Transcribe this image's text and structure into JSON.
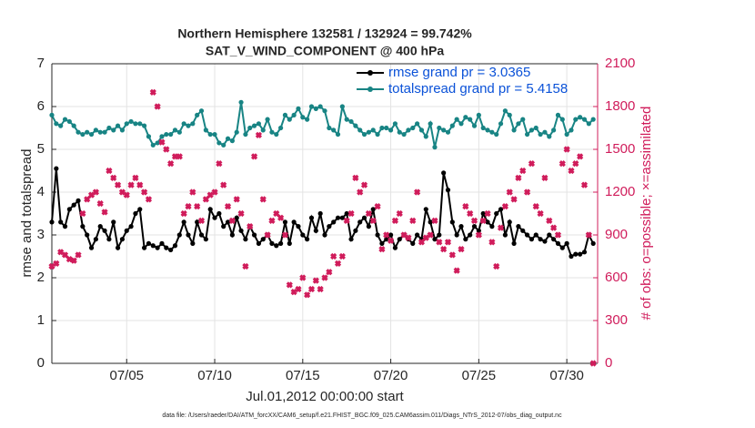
{
  "chart_data": {
    "type": "line",
    "title": "Northern Hemisphere 132581 / 132924 = 99.742%",
    "subtitle": "SAT_V_WIND_COMPONENT @ 400 hPa",
    "x_label": "Jul.01,2012 00:00:00 start",
    "y_label": "rmse and totalspread",
    "y2_label": "# of obs: o=possible; ×=assimilated",
    "footnote": "data file: /Users/raeder/DAI/ATM_forcXX/CAM6_setup/f.e21.FHIST_BGC.f09_025.CAM6assim.011/Diags_NTrS_2012-07/obs_diag_output.nc",
    "legend": "northeast",
    "grid": true,
    "xlim": [
      0.75,
      31.75
    ],
    "xticks": [
      {
        "value": 5,
        "label": "07/05"
      },
      {
        "value": 10,
        "label": "07/10"
      },
      {
        "value": 15,
        "label": "07/15"
      },
      {
        "value": 20,
        "label": "07/20"
      },
      {
        "value": 25,
        "label": "07/25"
      },
      {
        "value": 30,
        "label": "07/30"
      }
    ],
    "ylim": [
      0,
      7
    ],
    "yticks": [
      0,
      1,
      2,
      3,
      4,
      5,
      6,
      7
    ],
    "y2lim": [
      0,
      2100
    ],
    "y2ticks": [
      0,
      300,
      600,
      900,
      1200,
      1500,
      1800,
      2100
    ],
    "y2_color": "#d01c5b",
    "x": [
      0.75,
      1,
      1.25,
      1.5,
      1.75,
      2,
      2.25,
      2.5,
      2.75,
      3,
      3.25,
      3.5,
      3.75,
      4,
      4.25,
      4.5,
      4.75,
      5,
      5.25,
      5.5,
      5.75,
      6,
      6.25,
      6.5,
      6.75,
      7,
      7.25,
      7.5,
      7.75,
      8,
      8.25,
      8.5,
      8.75,
      9,
      9.25,
      9.5,
      9.75,
      10,
      10.25,
      10.5,
      10.75,
      11,
      11.25,
      11.5,
      11.75,
      12,
      12.25,
      12.5,
      12.75,
      13,
      13.25,
      13.5,
      13.75,
      14,
      14.25,
      14.5,
      14.75,
      15,
      15.25,
      15.5,
      15.75,
      16,
      16.25,
      16.5,
      16.75,
      17,
      17.25,
      17.5,
      17.75,
      18,
      18.25,
      18.5,
      18.75,
      19,
      19.25,
      19.5,
      19.75,
      20,
      20.25,
      20.5,
      20.75,
      21,
      21.25,
      21.5,
      21.75,
      22,
      22.25,
      22.5,
      22.75,
      23,
      23.25,
      23.5,
      23.75,
      24,
      24.25,
      24.5,
      24.75,
      25,
      25.25,
      25.5,
      25.75,
      26,
      26.25,
      26.5,
      26.75,
      27,
      27.25,
      27.5,
      27.75,
      28,
      28.25,
      28.5,
      28.75,
      29,
      29.25,
      29.5,
      29.75,
      30,
      30.25,
      30.5,
      30.75,
      31,
      31.25,
      31.5
    ],
    "series": [
      {
        "name": "rmse grand pr = 3.0365",
        "color": "#000000",
        "kind": "line",
        "values": [
          3.3,
          4.55,
          3.3,
          3.2,
          3.6,
          3.7,
          3.8,
          3.2,
          3.0,
          2.7,
          2.9,
          3.2,
          3.1,
          2.9,
          3.3,
          2.7,
          2.9,
          3.1,
          3.2,
          3.5,
          3.6,
          2.7,
          2.8,
          2.75,
          2.7,
          2.8,
          2.7,
          2.65,
          2.75,
          3.0,
          3.3,
          3.0,
          2.8,
          3.3,
          3.0,
          2.9,
          3.6,
          3.4,
          3.5,
          3.2,
          3.3,
          3.0,
          3.4,
          3.1,
          2.9,
          3.2,
          3.0,
          2.8,
          2.9,
          3.0,
          2.8,
          2.75,
          2.8,
          3.3,
          2.8,
          3.3,
          3.2,
          3.0,
          2.9,
          3.4,
          3.1,
          3.5,
          3.0,
          3.2,
          3.3,
          3.4,
          3.4,
          3.5,
          2.9,
          3.1,
          3.3,
          3.4,
          3.2,
          3.6,
          3.0,
          2.8,
          2.9,
          3.0,
          2.7,
          2.9,
          3.0,
          2.9,
          2.8,
          3.0,
          2.9,
          3.6,
          3.3,
          2.9,
          3.0,
          4.45,
          4.05,
          3.3,
          3.0,
          3.2,
          2.9,
          3.0,
          3.2,
          3.1,
          3.5,
          3.3,
          3.2,
          3.5,
          3.6,
          3.0,
          3.3,
          2.8,
          3.2,
          3.1,
          3.0,
          2.9,
          3.0,
          2.9,
          2.85,
          3.0,
          2.9,
          2.8,
          2.7,
          2.8,
          2.5,
          2.55,
          2.55,
          2.6,
          3.0,
          2.8
        ]
      },
      {
        "name": "totalspread grand pr = 5.4158",
        "color": "#188484",
        "kind": "line",
        "values": [
          5.8,
          5.6,
          5.55,
          5.7,
          5.65,
          5.55,
          5.4,
          5.35,
          5.4,
          5.35,
          5.45,
          5.4,
          5.4,
          5.5,
          5.45,
          5.55,
          5.45,
          5.6,
          5.65,
          5.6,
          5.6,
          5.55,
          5.3,
          5.1,
          5.15,
          5.3,
          5.35,
          5.35,
          5.45,
          5.4,
          5.6,
          5.55,
          5.6,
          5.8,
          5.9,
          5.45,
          5.35,
          5.35,
          5.15,
          5.1,
          5.25,
          5.2,
          5.4,
          6.1,
          5.35,
          5.5,
          5.55,
          5.6,
          5.45,
          5.7,
          5.4,
          5.35,
          5.5,
          5.8,
          5.7,
          5.8,
          5.95,
          5.75,
          5.7,
          6.0,
          5.95,
          6.0,
          5.9,
          5.5,
          5.45,
          5.35,
          6.0,
          5.7,
          5.65,
          5.55,
          5.45,
          5.35,
          5.4,
          5.45,
          5.35,
          5.5,
          5.5,
          5.45,
          5.6,
          5.4,
          5.35,
          5.45,
          5.5,
          5.6,
          5.45,
          5.3,
          5.6,
          5.05,
          5.5,
          5.45,
          5.4,
          5.55,
          5.7,
          5.6,
          5.75,
          5.7,
          5.55,
          5.8,
          5.5,
          5.45,
          5.4,
          5.35,
          5.6,
          5.9,
          5.8,
          5.45,
          5.6,
          5.7,
          5.35,
          5.45,
          5.5,
          5.35,
          5.4,
          5.3,
          5.45,
          5.8,
          5.7,
          5.35,
          5.45,
          5.7,
          5.75,
          5.7,
          5.6,
          5.7
        ]
      },
      {
        "color": "#d01c5b",
        "kind": "points",
        "axis": "y2",
        "values": [
          680,
          700,
          780,
          760,
          730,
          720,
          760,
          1050,
          1150,
          1180,
          1200,
          1120,
          1060,
          1350,
          1300,
          1250,
          1200,
          1180,
          1250,
          1300,
          1250,
          1200,
          1150,
          1900,
          1800,
          1550,
          1500,
          1400,
          1450,
          1450,
          1050,
          1100,
          1200,
          1100,
          1000,
          1150,
          1180,
          1200,
          1400,
          1250,
          1100,
          1000,
          1150,
          1050,
          680,
          960,
          1450,
          1600,
          1150,
          900,
          1000,
          1050,
          1020,
          900,
          550,
          500,
          520,
          600,
          480,
          520,
          580,
          520,
          600,
          640,
          750,
          700,
          750,
          1000,
          1050,
          1300,
          1200,
          1250,
          1050,
          1000,
          1100,
          800,
          900,
          860,
          1000,
          1050,
          900,
          880,
          1000,
          1200,
          850,
          880,
          900,
          1000,
          850,
          800,
          850,
          760,
          650,
          800,
          1100,
          1050,
          1000,
          900,
          1000,
          1050,
          850,
          680,
          950,
          1100,
          1200,
          1150,
          1300,
          1350,
          1200,
          1400,
          1100,
          1050,
          1300,
          1000,
          950,
          900,
          1400,
          1500,
          1350,
          1400,
          1450,
          1250,
          900,
          0
        ]
      }
    ]
  }
}
